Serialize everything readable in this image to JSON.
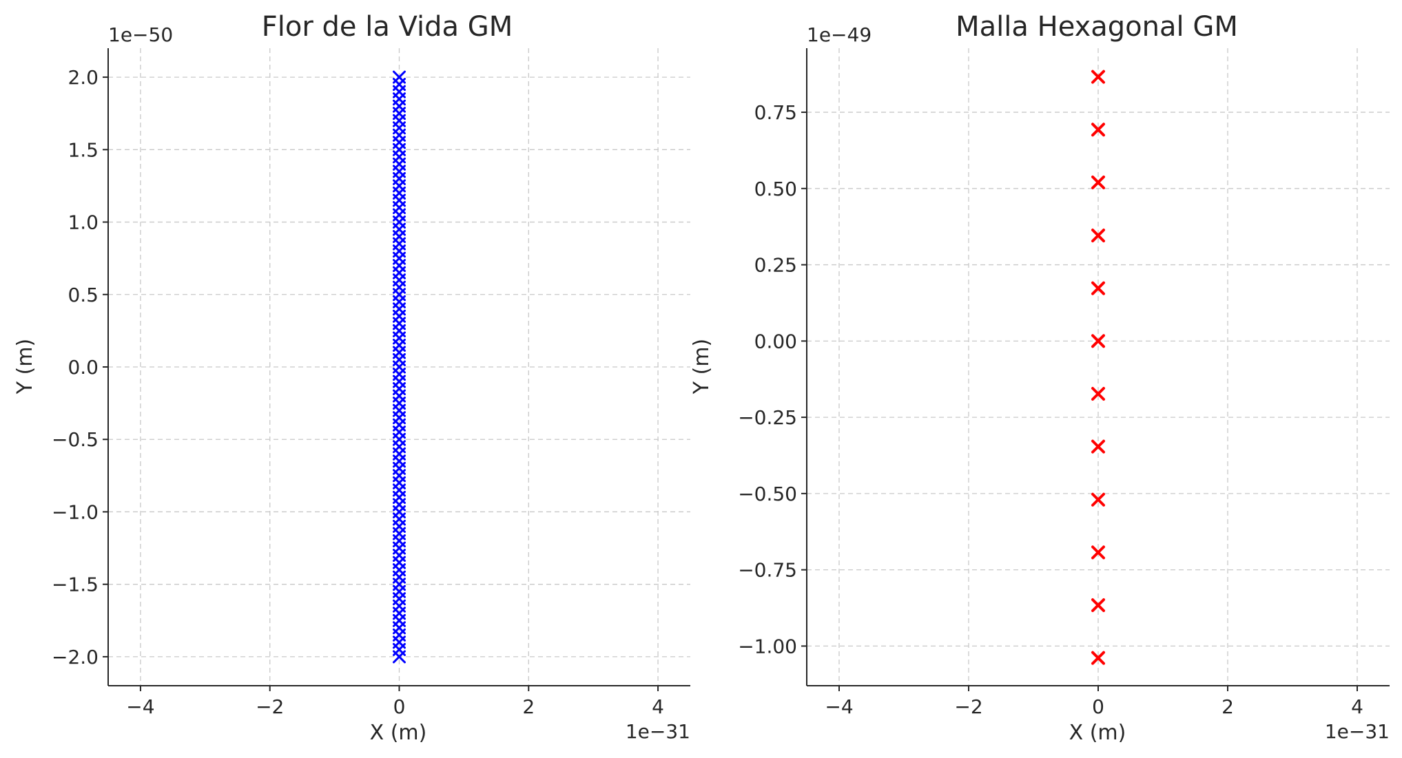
{
  "chart_data": [
    {
      "type": "scatter",
      "title": "Flor de la Vida GM",
      "xlabel": "X (m)",
      "ylabel": "Y (m)",
      "x_offset_text": "1e−31",
      "y_offset_text": "1e−50",
      "x_scale_exp": -31,
      "y_scale_exp": -50,
      "xlim": [
        -4.5,
        4.5
      ],
      "ylim": [
        -2.2,
        2.2
      ],
      "xticks": [
        -4,
        -2,
        0,
        2,
        4
      ],
      "xtick_labels": [
        "−4",
        "−2",
        "0",
        "2",
        "4"
      ],
      "yticks": [
        -2.0,
        -1.5,
        -1.0,
        -0.5,
        0.0,
        0.5,
        1.0,
        1.5,
        2.0
      ],
      "ytick_labels": [
        "−2.0",
        "−1.5",
        "−1.0",
        "−0.5",
        "0.0",
        "0.5",
        "1.0",
        "1.5",
        "2.0"
      ],
      "grid": true,
      "marker": "x",
      "color": "#0000ff",
      "series": [
        {
          "x": [
            0,
            0,
            0,
            0,
            0,
            0,
            0,
            0,
            0,
            0,
            0,
            0,
            0,
            0,
            0,
            0,
            0,
            0,
            0,
            0,
            0,
            0,
            0,
            0,
            0,
            0,
            0,
            0,
            0,
            0,
            0,
            0,
            0,
            0,
            0,
            0,
            0,
            0,
            0,
            0,
            0,
            0,
            0,
            0,
            0,
            0,
            0,
            0,
            0,
            0,
            0,
            0,
            0,
            0,
            0,
            0,
            0,
            0,
            0,
            0,
            0,
            0,
            0,
            0,
            0,
            0,
            0,
            0,
            0,
            0,
            0,
            0,
            0,
            0,
            0,
            0,
            0,
            0,
            0,
            0,
            0
          ],
          "y": [
            -2.0,
            -1.95,
            -1.9,
            -1.85,
            -1.8,
            -1.75,
            -1.7,
            -1.65,
            -1.6,
            -1.55,
            -1.5,
            -1.45,
            -1.4,
            -1.35,
            -1.3,
            -1.25,
            -1.2,
            -1.15,
            -1.1,
            -1.05,
            -1.0,
            -0.95,
            -0.9,
            -0.85,
            -0.8,
            -0.75,
            -0.7,
            -0.65,
            -0.6,
            -0.55,
            -0.5,
            -0.45,
            -0.4,
            -0.35,
            -0.3,
            -0.25,
            -0.2,
            -0.15,
            -0.1,
            -0.05,
            0.0,
            0.05,
            0.1,
            0.15,
            0.2,
            0.25,
            0.3,
            0.35,
            0.4,
            0.45,
            0.5,
            0.55,
            0.6,
            0.65,
            0.7,
            0.75,
            0.8,
            0.85,
            0.9,
            0.95,
            1.0,
            1.05,
            1.1,
            1.15,
            1.2,
            1.25,
            1.3,
            1.35,
            1.4,
            1.45,
            1.5,
            1.55,
            1.6,
            1.65,
            1.7,
            1.75,
            1.8,
            1.85,
            1.9,
            1.95,
            2.0
          ]
        }
      ]
    },
    {
      "type": "scatter",
      "title": "Malla Hexagonal GM",
      "xlabel": "X (m)",
      "ylabel": "Y (m)",
      "x_offset_text": "1e−31",
      "y_offset_text": "1e−49",
      "x_scale_exp": -31,
      "y_scale_exp": -49,
      "xlim": [
        -4.5,
        4.5
      ],
      "ylim": [
        -1.13,
        0.96
      ],
      "xticks": [
        -4,
        -2,
        0,
        2,
        4
      ],
      "xtick_labels": [
        "−4",
        "−2",
        "0",
        "2",
        "4"
      ],
      "yticks": [
        -1.0,
        -0.75,
        -0.5,
        -0.25,
        0.0,
        0.25,
        0.5,
        0.75
      ],
      "ytick_labels": [
        "−1.00",
        "−0.75",
        "−0.50",
        "−0.25",
        "0.00",
        "0.25",
        "0.50",
        "0.75"
      ],
      "grid": true,
      "marker": "x",
      "color": "#ff0000",
      "series": [
        {
          "x": [
            0,
            0,
            0,
            0,
            0,
            0,
            0,
            0,
            0,
            0,
            0,
            0
          ],
          "y": [
            0.866,
            0.693,
            0.52,
            0.346,
            0.173,
            0.0,
            -0.173,
            -0.346,
            -0.52,
            -0.693,
            -0.866,
            -1.039
          ]
        }
      ]
    }
  ]
}
